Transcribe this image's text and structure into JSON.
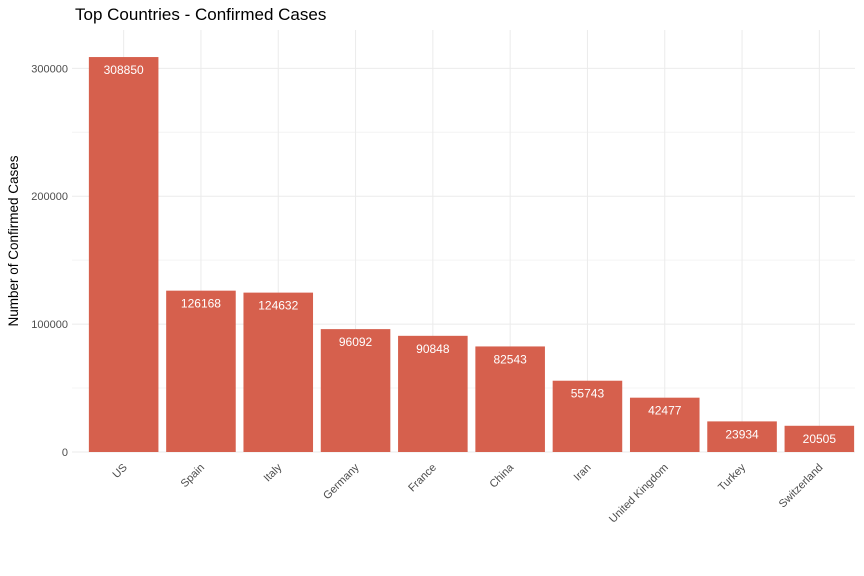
{
  "chart_data": {
    "type": "bar",
    "title": "Top Countries - Confirmed Cases",
    "xlabel": "",
    "ylabel": "Number of Confirmed Cases",
    "categories": [
      "US",
      "Spain",
      "Italy",
      "Germany",
      "France",
      "China",
      "Iran",
      "United Kingdom",
      "Turkey",
      "Switzerland"
    ],
    "values": [
      308850,
      126168,
      124632,
      96092,
      90848,
      82543,
      55743,
      42477,
      23934,
      20505
    ],
    "ylim": [
      0,
      330000
    ],
    "yticks": [
      0,
      100000,
      200000,
      300000
    ],
    "grid": true,
    "bar_color": "#d6604d",
    "data_labels": true
  }
}
